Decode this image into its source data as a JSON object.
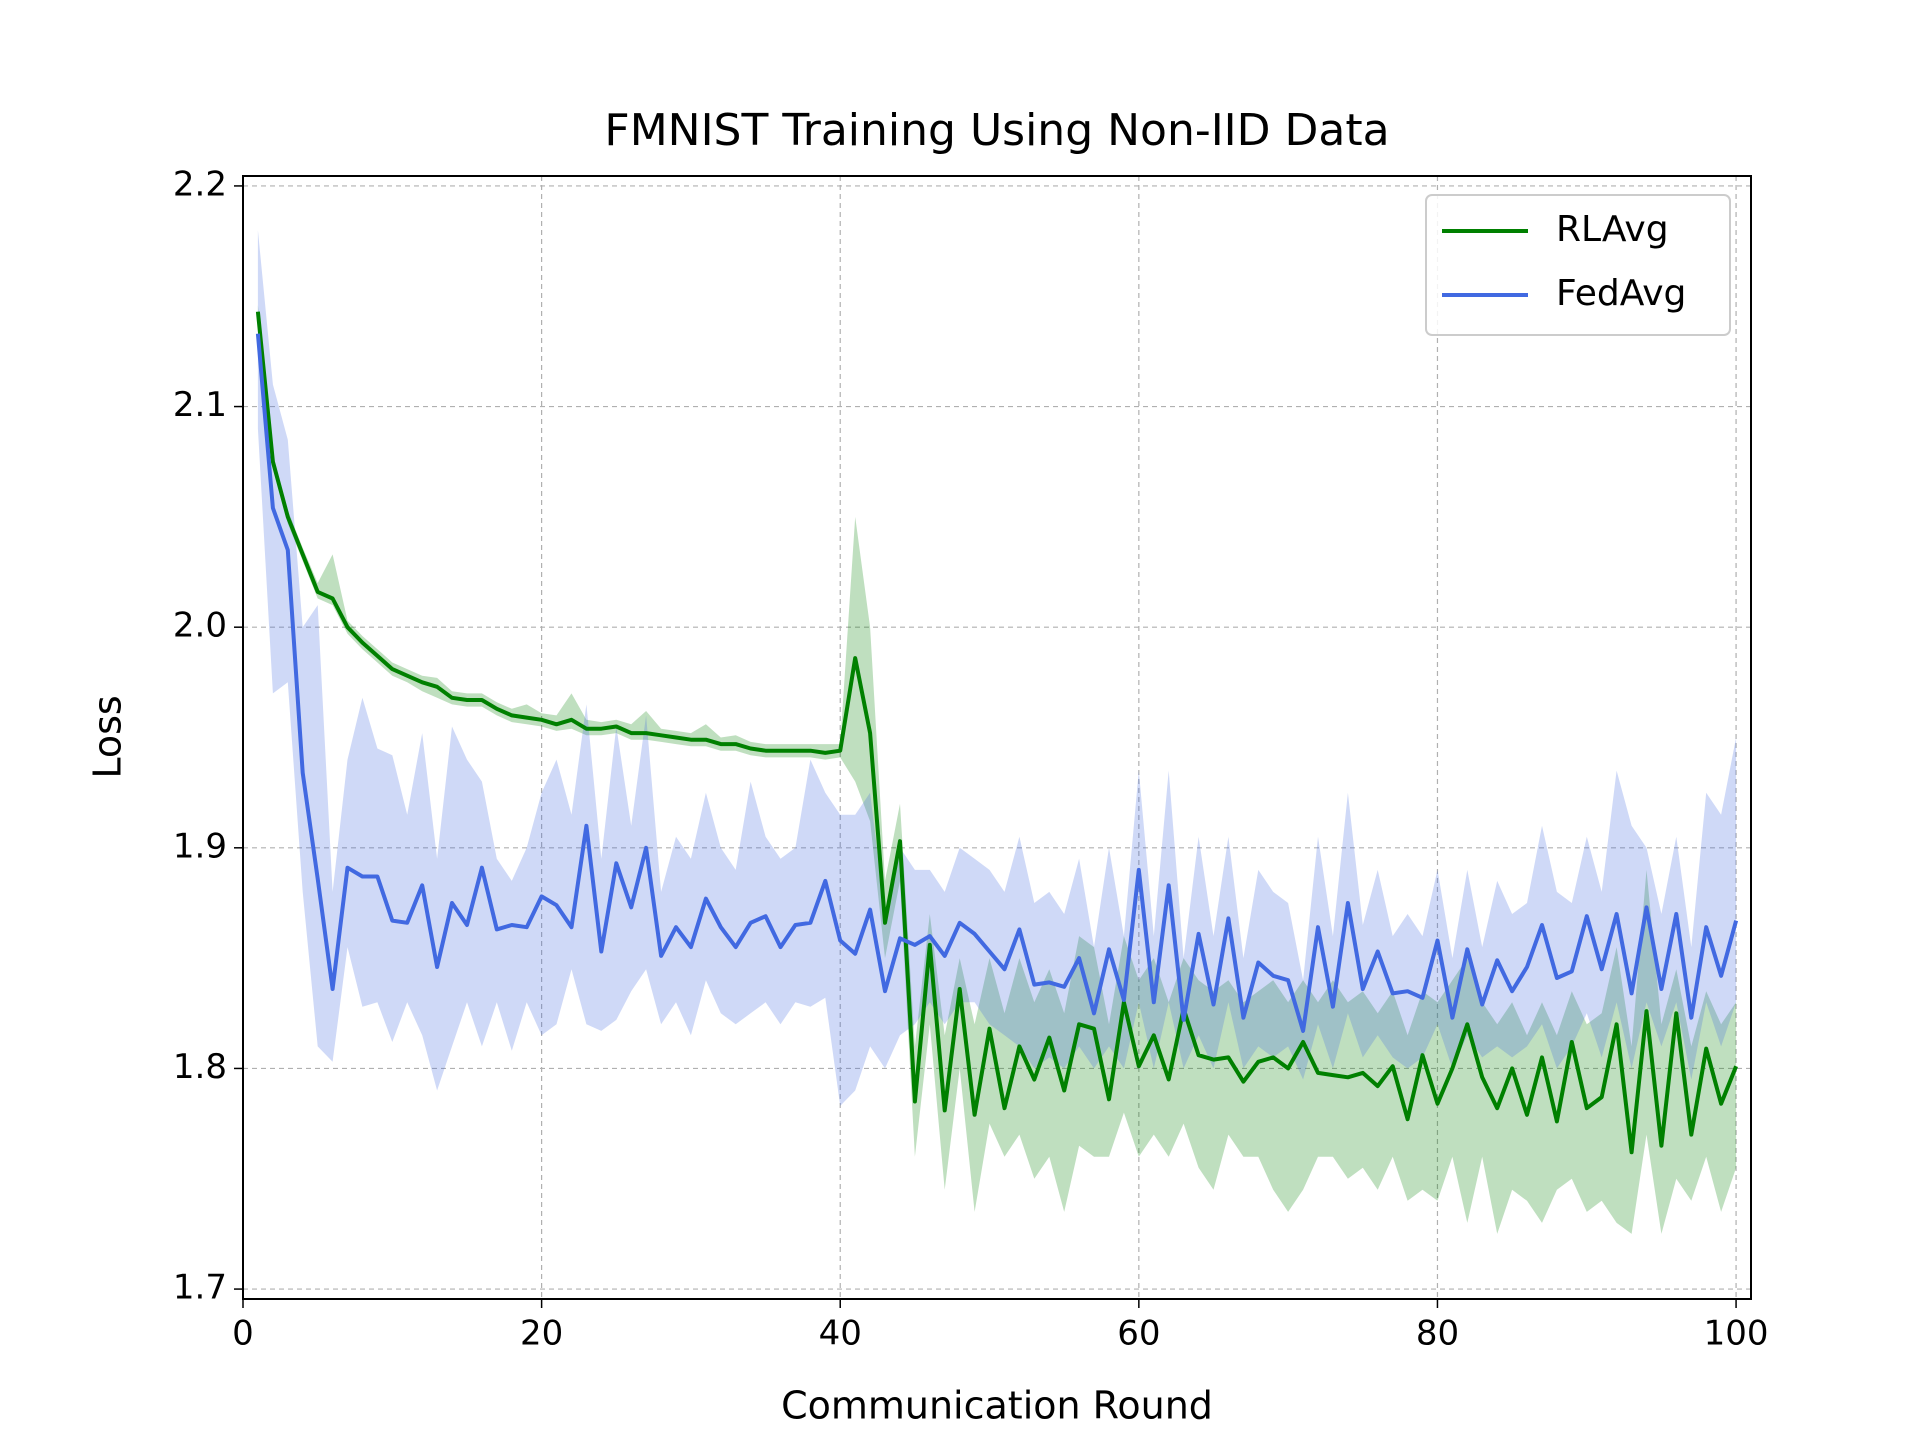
{
  "chart_data": {
    "type": "line",
    "title": "FMNIST Training Using Non-IID Data",
    "x_label": "Communication Round",
    "y_label": "Loss",
    "x": [
      1,
      2,
      3,
      4,
      5,
      6,
      7,
      8,
      9,
      10,
      11,
      12,
      13,
      14,
      15,
      16,
      17,
      18,
      19,
      20,
      21,
      22,
      23,
      24,
      25,
      26,
      27,
      28,
      29,
      30,
      31,
      32,
      33,
      34,
      35,
      36,
      37,
      38,
      39,
      40,
      41,
      42,
      43,
      44,
      45,
      46,
      47,
      48,
      49,
      50,
      51,
      52,
      53,
      54,
      55,
      56,
      57,
      58,
      59,
      60,
      61,
      62,
      63,
      64,
      65,
      66,
      67,
      68,
      69,
      70,
      71,
      72,
      73,
      74,
      75,
      76,
      77,
      78,
      79,
      80,
      81,
      82,
      83,
      84,
      85,
      86,
      87,
      88,
      89,
      90,
      91,
      92,
      93,
      94,
      95,
      96,
      97,
      98,
      99,
      100
    ],
    "xlim": [
      0,
      101
    ],
    "ylim": [
      1.6955,
      2.2045
    ],
    "xticks": [
      0,
      20,
      40,
      60,
      80,
      100
    ],
    "yticks": [
      1.7,
      1.8,
      1.9,
      {
        "value": 2,
        "label": "2.0"
      },
      2.1,
      2.2
    ],
    "grid": true,
    "legend": "upper right",
    "series": [
      {
        "name": "RLAvg",
        "color": "#008000",
        "values": [
          2.143,
          2.075,
          2.05,
          2.033,
          2.016,
          2.013,
          2.0,
          1.993,
          1.987,
          1.981,
          1.978,
          1.975,
          1.973,
          1.968,
          1.967,
          1.967,
          1.963,
          1.96,
          1.959,
          1.958,
          1.956,
          1.958,
          1.954,
          1.954,
          1.955,
          1.952,
          1.952,
          1.951,
          1.95,
          1.949,
          1.949,
          1.947,
          1.947,
          1.945,
          1.944,
          1.944,
          1.944,
          1.944,
          1.943,
          1.944,
          1.986,
          1.952,
          1.866,
          1.903,
          1.785,
          1.856,
          1.781,
          1.836,
          1.779,
          1.818,
          1.782,
          1.81,
          1.795,
          1.814,
          1.79,
          1.82,
          1.818,
          1.786,
          1.83,
          1.801,
          1.815,
          1.795,
          1.827,
          1.806,
          1.804,
          1.805,
          1.794,
          1.803,
          1.805,
          1.8,
          1.812,
          1.798,
          1.797,
          1.796,
          1.798,
          1.792,
          1.801,
          1.777,
          1.806,
          1.784,
          1.8,
          1.82,
          1.796,
          1.782,
          1.8,
          1.779,
          1.805,
          1.776,
          1.812,
          1.782,
          1.787,
          1.82,
          1.762,
          1.826,
          1.765,
          1.825,
          1.77,
          1.809,
          1.784,
          1.801
        ],
        "lower": [
          2.14,
          2.072,
          2.047,
          2.03,
          2.013,
          2.01,
          1.997,
          1.99,
          1.984,
          1.978,
          1.975,
          1.971,
          1.968,
          1.965,
          1.964,
          1.964,
          1.96,
          1.957,
          1.956,
          1.955,
          1.953,
          1.954,
          1.951,
          1.951,
          1.952,
          1.949,
          1.949,
          1.948,
          1.947,
          1.946,
          1.946,
          1.944,
          1.944,
          1.942,
          1.941,
          1.941,
          1.941,
          1.941,
          1.94,
          1.941,
          1.93,
          1.912,
          1.85,
          1.885,
          1.76,
          1.82,
          1.745,
          1.8,
          1.735,
          1.775,
          1.76,
          1.77,
          1.75,
          1.76,
          1.735,
          1.765,
          1.76,
          1.76,
          1.78,
          1.76,
          1.77,
          1.76,
          1.775,
          1.755,
          1.745,
          1.77,
          1.76,
          1.76,
          1.745,
          1.735,
          1.745,
          1.76,
          1.76,
          1.75,
          1.755,
          1.745,
          1.76,
          1.74,
          1.745,
          1.74,
          1.76,
          1.73,
          1.76,
          1.725,
          1.745,
          1.74,
          1.73,
          1.745,
          1.75,
          1.735,
          1.74,
          1.73,
          1.725,
          1.77,
          1.725,
          1.75,
          1.74,
          1.76,
          1.735,
          1.755
        ],
        "upper": [
          2.146,
          2.078,
          2.053,
          2.036,
          2.02,
          2.033,
          2.003,
          1.996,
          1.99,
          1.984,
          1.981,
          1.978,
          1.977,
          1.971,
          1.97,
          1.97,
          1.966,
          1.963,
          1.965,
          1.961,
          1.96,
          1.97,
          1.958,
          1.957,
          1.958,
          1.956,
          1.962,
          1.954,
          1.953,
          1.952,
          1.956,
          1.95,
          1.951,
          1.948,
          1.947,
          1.947,
          1.947,
          1.947,
          1.947,
          1.947,
          2.05,
          2.0,
          1.885,
          1.92,
          1.81,
          1.87,
          1.815,
          1.85,
          1.82,
          1.85,
          1.825,
          1.85,
          1.83,
          1.845,
          1.825,
          1.86,
          1.855,
          1.82,
          1.86,
          1.84,
          1.85,
          1.83,
          1.85,
          1.84,
          1.835,
          1.84,
          1.83,
          1.835,
          1.84,
          1.83,
          1.84,
          1.83,
          1.84,
          1.83,
          1.835,
          1.825,
          1.835,
          1.815,
          1.835,
          1.83,
          1.84,
          1.85,
          1.83,
          1.82,
          1.83,
          1.815,
          1.83,
          1.815,
          1.835,
          1.82,
          1.825,
          1.855,
          1.81,
          1.89,
          1.82,
          1.845,
          1.81,
          1.835,
          1.82,
          1.83
        ]
      },
      {
        "name": "FedAvg",
        "color": "#4169e1",
        "values": [
          2.133,
          2.054,
          2.035,
          1.934,
          1.886,
          1.836,
          1.891,
          1.887,
          1.887,
          1.867,
          1.866,
          1.883,
          1.846,
          1.875,
          1.865,
          1.891,
          1.863,
          1.865,
          1.864,
          1.878,
          1.874,
          1.864,
          1.91,
          1.853,
          1.893,
          1.873,
          1.9,
          1.851,
          1.864,
          1.855,
          1.877,
          1.864,
          1.855,
          1.866,
          1.869,
          1.855,
          1.865,
          1.866,
          1.885,
          1.858,
          1.852,
          1.872,
          1.835,
          1.859,
          1.856,
          1.86,
          1.851,
          1.866,
          1.861,
          1.853,
          1.845,
          1.863,
          1.838,
          1.839,
          1.837,
          1.85,
          1.825,
          1.854,
          1.831,
          1.89,
          1.83,
          1.883,
          1.822,
          1.861,
          1.829,
          1.868,
          1.823,
          1.848,
          1.842,
          1.84,
          1.817,
          1.864,
          1.828,
          1.875,
          1.836,
          1.853,
          1.834,
          1.835,
          1.832,
          1.858,
          1.823,
          1.854,
          1.829,
          1.849,
          1.835,
          1.846,
          1.865,
          1.841,
          1.844,
          1.869,
          1.845,
          1.87,
          1.834,
          1.873,
          1.836,
          1.87,
          1.823,
          1.864,
          1.842,
          1.867
        ],
        "lower": [
          2.09,
          1.97,
          1.975,
          1.88,
          1.81,
          1.803,
          1.855,
          1.828,
          1.83,
          1.812,
          1.83,
          1.815,
          1.79,
          1.81,
          1.83,
          1.81,
          1.83,
          1.808,
          1.83,
          1.815,
          1.82,
          1.845,
          1.82,
          1.817,
          1.822,
          1.835,
          1.845,
          1.82,
          1.83,
          1.815,
          1.84,
          1.825,
          1.82,
          1.825,
          1.83,
          1.82,
          1.83,
          1.828,
          1.832,
          1.783,
          1.79,
          1.81,
          1.8,
          1.815,
          1.82,
          1.83,
          1.82,
          1.83,
          1.83,
          1.82,
          1.815,
          1.81,
          1.8,
          1.805,
          1.8,
          1.81,
          1.8,
          1.81,
          1.8,
          1.83,
          1.8,
          1.83,
          1.8,
          1.815,
          1.8,
          1.83,
          1.8,
          1.81,
          1.805,
          1.81,
          1.795,
          1.82,
          1.8,
          1.825,
          1.805,
          1.815,
          1.805,
          1.8,
          1.805,
          1.82,
          1.8,
          1.815,
          1.805,
          1.81,
          1.805,
          1.81,
          1.82,
          1.8,
          1.81,
          1.825,
          1.805,
          1.83,
          1.8,
          1.83,
          1.81,
          1.83,
          1.795,
          1.83,
          1.81,
          1.83
        ],
        "upper": [
          2.18,
          2.11,
          2.085,
          2.0,
          2.01,
          1.88,
          1.94,
          1.968,
          1.945,
          1.942,
          1.915,
          1.952,
          1.895,
          1.955,
          1.94,
          1.93,
          1.895,
          1.885,
          1.9,
          1.925,
          1.94,
          1.915,
          1.965,
          1.895,
          1.955,
          1.91,
          1.96,
          1.88,
          1.905,
          1.895,
          1.925,
          1.9,
          1.89,
          1.93,
          1.905,
          1.895,
          1.9,
          1.94,
          1.925,
          1.915,
          1.915,
          1.925,
          1.87,
          1.9,
          1.89,
          1.89,
          1.88,
          1.9,
          1.895,
          1.89,
          1.88,
          1.905,
          1.875,
          1.88,
          1.87,
          1.895,
          1.855,
          1.9,
          1.86,
          1.935,
          1.86,
          1.935,
          1.85,
          1.905,
          1.86,
          1.905,
          1.85,
          1.89,
          1.88,
          1.875,
          1.84,
          1.905,
          1.86,
          1.925,
          1.865,
          1.89,
          1.86,
          1.87,
          1.86,
          1.89,
          1.85,
          1.89,
          1.855,
          1.885,
          1.87,
          1.875,
          1.91,
          1.88,
          1.875,
          1.905,
          1.88,
          1.935,
          1.91,
          1.9,
          1.87,
          1.905,
          1.855,
          1.925,
          1.915,
          1.95
        ]
      }
    ]
  }
}
